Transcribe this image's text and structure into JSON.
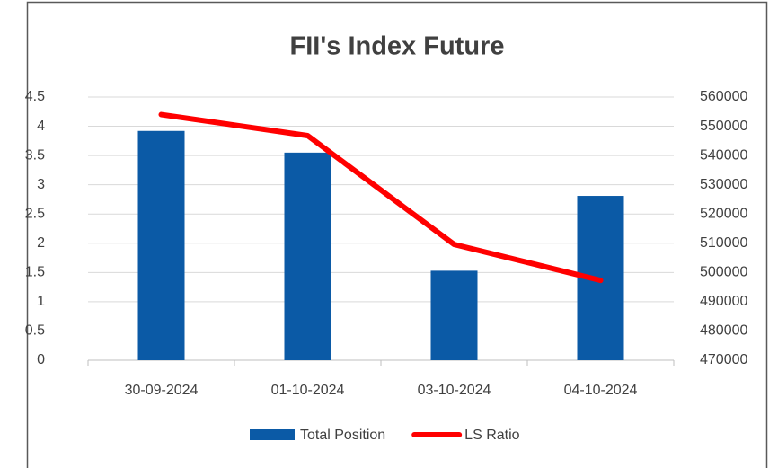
{
  "chart_data": {
    "type": "bar-line",
    "title": "FII's Index Future",
    "categories": [
      "30-09-2024",
      "01-10-2024",
      "03-10-2024",
      "04-10-2024"
    ],
    "series": [
      {
        "name": "Total Position",
        "type": "bar",
        "color": "#0b5aa6",
        "values": [
          3.92,
          3.55,
          1.53,
          2.81
        ]
      },
      {
        "name": "LS Ratio",
        "type": "line",
        "axis": "y2",
        "color": "#ff0000",
        "values": [
          554000,
          546800,
          509600,
          497300
        ]
      }
    ],
    "ylim": [
      0,
      4.5
    ],
    "yticks": [
      0,
      0.5,
      1,
      1.5,
      2,
      2.5,
      3,
      3.5,
      4,
      4.5
    ],
    "y2lim": [
      470000,
      560000
    ],
    "y2ticks": [
      470000,
      480000,
      490000,
      500000,
      510000,
      520000,
      530000,
      540000,
      550000,
      560000
    ],
    "grid": true,
    "legend": "bottom"
  }
}
